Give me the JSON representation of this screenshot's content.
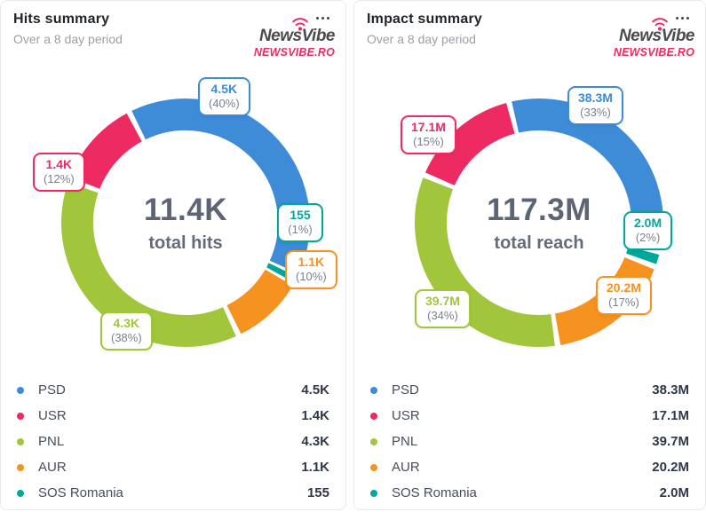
{
  "brand": {
    "name": "NewsVibe",
    "domain": "NEWSVIBE.RO",
    "accent_color": "#ee2a62",
    "text_color": "#4a4b4d"
  },
  "colors": {
    "psd_blue": "#3e8bd8",
    "usr_pink": "#ee2a62",
    "pnl_green": "#a2c63b",
    "aur_orange": "#f6921f",
    "sos_teal": "#00a79b"
  },
  "cards": [
    {
      "title": "Hits summary",
      "subtitle": "Over a 8 day period",
      "center_value": "11.4K",
      "center_caption": "total hits",
      "start_angle": -27,
      "segments": [
        {
          "party": "PSD",
          "value_label": "4.5K",
          "pct_label": "(40%)",
          "pct": 40,
          "color": "#3e8bd8"
        },
        {
          "party": "SOS Romania",
          "value_label": "155",
          "pct_label": "(1%)",
          "pct": 1,
          "color": "#00a79b"
        },
        {
          "party": "AUR",
          "value_label": "1.1K",
          "pct_label": "(10%)",
          "pct": 10,
          "color": "#f6921f"
        },
        {
          "party": "PNL",
          "value_label": "4.3K",
          "pct_label": "(38%)",
          "pct": 38,
          "color": "#a2c63b"
        },
        {
          "party": "USR",
          "value_label": "1.4K",
          "pct_label": "(12%)",
          "pct": 12,
          "color": "#ee2a62"
        }
      ],
      "legend": [
        {
          "label": "PSD",
          "value": "4.5K",
          "color": "#3e8bd8"
        },
        {
          "label": "USR",
          "value": "1.4K",
          "color": "#ee2a62"
        },
        {
          "label": "PNL",
          "value": "4.3K",
          "color": "#a2c63b"
        },
        {
          "label": "AUR",
          "value": "1.1K",
          "color": "#f6921f"
        },
        {
          "label": "SOS Romania",
          "value": "155",
          "color": "#00a79b"
        }
      ]
    },
    {
      "title": "Impact summary",
      "subtitle": "Over a 8 day period",
      "center_value": "117.3M",
      "center_caption": "total reach",
      "start_angle": -14,
      "segments": [
        {
          "party": "PSD",
          "value_label": "38.3M",
          "pct_label": "(33%)",
          "pct": 33,
          "color": "#3e8bd8"
        },
        {
          "party": "SOS Romania",
          "value_label": "2.0M",
          "pct_label": "(2%)",
          "pct": 2,
          "color": "#00a79b"
        },
        {
          "party": "AUR",
          "value_label": "20.2M",
          "pct_label": "(17%)",
          "pct": 17,
          "color": "#f6921f"
        },
        {
          "party": "PNL",
          "value_label": "39.7M",
          "pct_label": "(34%)",
          "pct": 34,
          "color": "#a2c63b"
        },
        {
          "party": "USR",
          "value_label": "17.1M",
          "pct_label": "(15%)",
          "pct": 15,
          "color": "#ee2a62"
        }
      ],
      "legend": [
        {
          "label": "PSD",
          "value": "38.3M",
          "color": "#3e8bd8"
        },
        {
          "label": "USR",
          "value": "17.1M",
          "color": "#ee2a62"
        },
        {
          "label": "PNL",
          "value": "39.7M",
          "color": "#a2c63b"
        },
        {
          "label": "AUR",
          "value": "20.2M",
          "color": "#f6921f"
        },
        {
          "label": "SOS Romania",
          "value": "2.0M",
          "color": "#00a79b"
        }
      ]
    }
  ],
  "chart_data": [
    {
      "type": "pie",
      "title": "Hits summary",
      "subtitle": "Over a 8 day period",
      "categories": [
        "PSD",
        "USR",
        "PNL",
        "AUR",
        "SOS Romania"
      ],
      "values": [
        4500,
        1400,
        4300,
        1100,
        155
      ],
      "value_labels": [
        "4.5K",
        "1.4K",
        "4.3K",
        "1.1K",
        "155"
      ],
      "percents": [
        40,
        12,
        38,
        10,
        1
      ],
      "colors": [
        "#3e8bd8",
        "#ee2a62",
        "#a2c63b",
        "#f6921f",
        "#00a79b"
      ],
      "center_total": "11.4K",
      "center_caption": "total hits",
      "legend_position": "bottom"
    },
    {
      "type": "pie",
      "title": "Impact summary",
      "subtitle": "Over a 8 day period",
      "categories": [
        "PSD",
        "USR",
        "PNL",
        "AUR",
        "SOS Romania"
      ],
      "values": [
        38300000,
        17100000,
        39700000,
        20200000,
        2000000
      ],
      "value_labels": [
        "38.3M",
        "17.1M",
        "39.7M",
        "20.2M",
        "2.0M"
      ],
      "percents": [
        33,
        15,
        34,
        17,
        2
      ],
      "colors": [
        "#3e8bd8",
        "#ee2a62",
        "#a2c63b",
        "#f6921f",
        "#00a79b"
      ],
      "center_total": "117.3M",
      "center_caption": "total reach",
      "legend_position": "bottom"
    }
  ]
}
